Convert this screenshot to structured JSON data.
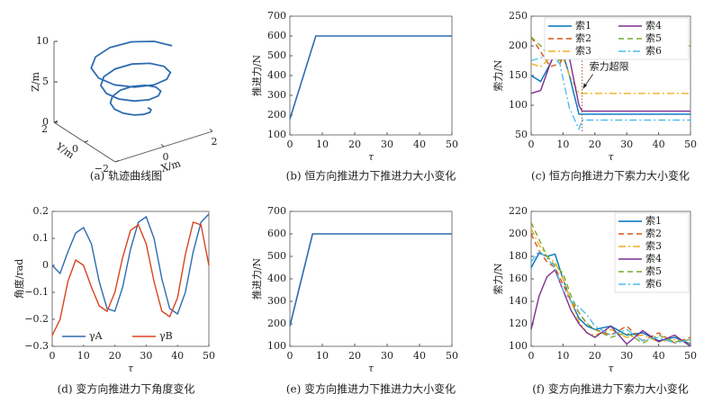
{
  "chart_data": [
    {
      "type": "line3d",
      "caption": "(a) 轨迹曲线图",
      "xlabel": "X/m",
      "ylabel": "Y/m",
      "zlabel": "Z/m",
      "xlim": [
        -2,
        2
      ],
      "ylim": [
        -2,
        2
      ],
      "zlim": [
        0,
        10
      ],
      "xticks": [
        0,
        2
      ],
      "yticks": [
        {
          "value": -2,
          "label": "−2"
        },
        0,
        2
      ],
      "zticks": [
        0,
        5,
        10
      ],
      "series": [
        {
          "color": "#2e6bb0",
          "x": [
            1.6,
            1.36,
            0.77,
            0,
            -0.74,
            -1.27,
            -1.43,
            -1.22,
            -0.69,
            0,
            0.66,
            1.12,
            1.27,
            1.07,
            0.61,
            0,
            -0.58,
            -0.98,
            -1.1,
            -0.93,
            -0.52,
            0,
            0.49,
            0.83,
            0.93,
            0.78,
            0.44,
            0,
            -0.41,
            -0.69,
            -0.77,
            -0.64,
            -0.36,
            0,
            0.33,
            0.54,
            0.6
          ],
          "y": [
            0,
            0.79,
            1.34,
            1.52,
            1.29,
            0.73,
            0,
            -0.7,
            -1.19,
            -1.35,
            -1.14,
            -0.65,
            0,
            0.62,
            1.05,
            1.18,
            1.0,
            0.56,
            0,
            -0.54,
            -0.9,
            -1.02,
            -0.86,
            -0.48,
            0,
            0.45,
            0.76,
            0.85,
            0.71,
            0.4,
            0,
            -0.37,
            -0.62,
            -0.68,
            -0.57,
            -0.31,
            0
          ],
          "z": [
            8.5,
            8.31,
            8.13,
            7.94,
            7.76,
            7.57,
            7.38,
            7.2,
            7.01,
            6.83,
            6.64,
            6.45,
            6.27,
            6.08,
            5.9,
            5.71,
            5.52,
            5.34,
            5.15,
            4.97,
            4.78,
            4.59,
            4.41,
            4.22,
            4.03,
            3.85,
            3.66,
            3.48,
            3.29,
            3.1,
            2.92,
            2.73,
            2.55,
            2.36,
            2.17,
            1.99,
            1.8
          ]
        }
      ]
    },
    {
      "type": "line",
      "caption": "(b) 恒方向推进力下推进力大小变化",
      "xlabel": "τ",
      "ylabel": "推进力/N",
      "xlim": [
        0,
        50
      ],
      "ylim": [
        100,
        700
      ],
      "xticks": [
        0,
        10,
        20,
        30,
        40,
        50
      ],
      "yticks": [
        100,
        200,
        300,
        400,
        500,
        600,
        700
      ],
      "x": [
        0,
        8,
        50
      ],
      "values": [
        180,
        600,
        600
      ],
      "color": "#2e6bb0"
    },
    {
      "type": "line",
      "caption": "(c) 恒方向推进力下索力大小变化",
      "xlabel": "τ",
      "ylabel": "索力/N",
      "xlim": [
        0,
        50
      ],
      "ylim": [
        50,
        250
      ],
      "xticks": [
        0,
        10,
        20,
        30,
        40,
        50
      ],
      "yticks": [
        50,
        100,
        150,
        200,
        250
      ],
      "legend": "northeast",
      "legend_columns": 2,
      "annotation": {
        "text": "索力超限",
        "x": 16,
        "y": 128
      },
      "x": [
        0,
        3,
        6,
        9,
        12,
        15,
        16,
        50
      ],
      "series": [
        {
          "name": "索1",
          "color": "#0072bd",
          "dash": "solid",
          "values": [
            150,
            140,
            170,
            205,
            150,
            85,
            85,
            85
          ]
        },
        {
          "name": "索2",
          "color": "#d95319",
          "dash": "dashed",
          "values": [
            215,
            190,
            165,
            170,
            205,
            205,
            205,
            205
          ]
        },
        {
          "name": "索3",
          "color": "#edb120",
          "dash": "dashdot",
          "values": [
            170,
            165,
            180,
            195,
            150,
            120,
            120,
            120
          ]
        },
        {
          "name": "索4",
          "color": "#7e2f8e",
          "dash": "solid",
          "values": [
            120,
            125,
            170,
            205,
            180,
            100,
            90,
            90
          ]
        },
        {
          "name": "索5",
          "color": "#77ac30",
          "dash": "dashed",
          "values": [
            215,
            200,
            180,
            175,
            195,
            200,
            200,
            200
          ]
        },
        {
          "name": "索6",
          "color": "#4dbeee",
          "dash": "dashdot",
          "values": [
            175,
            180,
            185,
            170,
            95,
            60,
            75,
            75
          ]
        }
      ]
    },
    {
      "type": "line",
      "caption": "(d) 变方向推进力下角度变化",
      "xlabel": "τ",
      "ylabel": "角度/rad",
      "xlim": [
        0,
        50
      ],
      "ylim": [
        -0.3,
        0.2
      ],
      "xticks": [
        0,
        10,
        20,
        30,
        40,
        50
      ],
      "yticks": [
        {
          "value": -0.3,
          "label": "−0.3"
        },
        {
          "value": -0.2,
          "label": "−0.2"
        },
        {
          "value": -0.1,
          "label": "−0.1"
        },
        0,
        0.1,
        0.2
      ],
      "legend": "south",
      "legend_columns": 2,
      "x": [
        0,
        2.5,
        5,
        7.5,
        10,
        12.5,
        15,
        17.5,
        20,
        22.5,
        25,
        27.5,
        30,
        32.5,
        35,
        37.5,
        40,
        42.5,
        45,
        47.5,
        50
      ],
      "series": [
        {
          "name": "γA",
          "color": "#2e6bb0",
          "dash": "solid",
          "values": [
            0,
            -0.03,
            0.05,
            0.12,
            0.14,
            0.08,
            -0.06,
            -0.16,
            -0.17,
            -0.08,
            0.06,
            0.16,
            0.18,
            0.1,
            -0.05,
            -0.16,
            -0.18,
            -0.1,
            0.05,
            0.16,
            0.19
          ]
        },
        {
          "name": "γB",
          "color": "#d9441f",
          "dash": "solid",
          "values": [
            -0.26,
            -0.2,
            -0.06,
            0.02,
            0.0,
            -0.08,
            -0.15,
            -0.17,
            -0.1,
            0.03,
            0.13,
            0.15,
            0.08,
            -0.06,
            -0.17,
            -0.19,
            -0.12,
            0.04,
            0.16,
            0.15,
            0.0
          ]
        }
      ]
    },
    {
      "type": "line",
      "caption": "(e) 变方向推进力下推进力大小变化",
      "xlabel": "τ",
      "ylabel": "推进力/N",
      "xlim": [
        0,
        50
      ],
      "ylim": [
        100,
        700
      ],
      "xticks": [
        0,
        10,
        20,
        30,
        40,
        50
      ],
      "yticks": [
        100,
        200,
        300,
        400,
        500,
        600,
        700
      ],
      "x": [
        0,
        7,
        50
      ],
      "values": [
        190,
        600,
        600
      ],
      "color": "#2e6bb0"
    },
    {
      "type": "line",
      "caption": "(f) 变方向推进力下索力大小变化",
      "xlabel": "τ",
      "ylabel": "索力/N",
      "xlim": [
        0,
        50
      ],
      "ylim": [
        100,
        220
      ],
      "xticks": [
        0,
        10,
        20,
        30,
        40,
        50
      ],
      "yticks": [
        100,
        120,
        140,
        160,
        180,
        200,
        220
      ],
      "legend": "northeast",
      "legend_columns": 1,
      "x": [
        0,
        2.5,
        5,
        7.5,
        10,
        12.5,
        15,
        17.5,
        20,
        25,
        30,
        35,
        40,
        45,
        50
      ],
      "series": [
        {
          "name": "索1",
          "color": "#0072bd",
          "dash": "solid",
          "values": [
            170,
            183,
            180,
            182,
            160,
            140,
            125,
            118,
            115,
            118,
            110,
            112,
            105,
            108,
            102
          ]
        },
        {
          "name": "索2",
          "color": "#d95319",
          "dash": "dashed",
          "values": [
            200,
            185,
            175,
            170,
            155,
            140,
            130,
            120,
            115,
            110,
            118,
            105,
            112,
            103,
            108
          ]
        },
        {
          "name": "索3",
          "color": "#edb120",
          "dash": "dashdot",
          "values": [
            205,
            190,
            180,
            175,
            160,
            140,
            122,
            112,
            110,
            115,
            108,
            110,
            104,
            106,
            103
          ]
        },
        {
          "name": "索4",
          "color": "#7e2f8e",
          "dash": "solid",
          "values": [
            115,
            145,
            162,
            168,
            150,
            132,
            120,
            112,
            108,
            118,
            102,
            114,
            104,
            110,
            100
          ]
        },
        {
          "name": "索5",
          "color": "#77ac30",
          "dash": "dashed",
          "values": [
            210,
            195,
            180,
            172,
            165,
            145,
            130,
            120,
            115,
            108,
            112,
            103,
            110,
            104,
            106
          ]
        },
        {
          "name": "索6",
          "color": "#4dbeee",
          "dash": "dashdot",
          "values": [
            175,
            185,
            178,
            170,
            150,
            140,
            135,
            128,
            118,
            110,
            115,
            105,
            108,
            103,
            106
          ]
        }
      ]
    }
  ]
}
